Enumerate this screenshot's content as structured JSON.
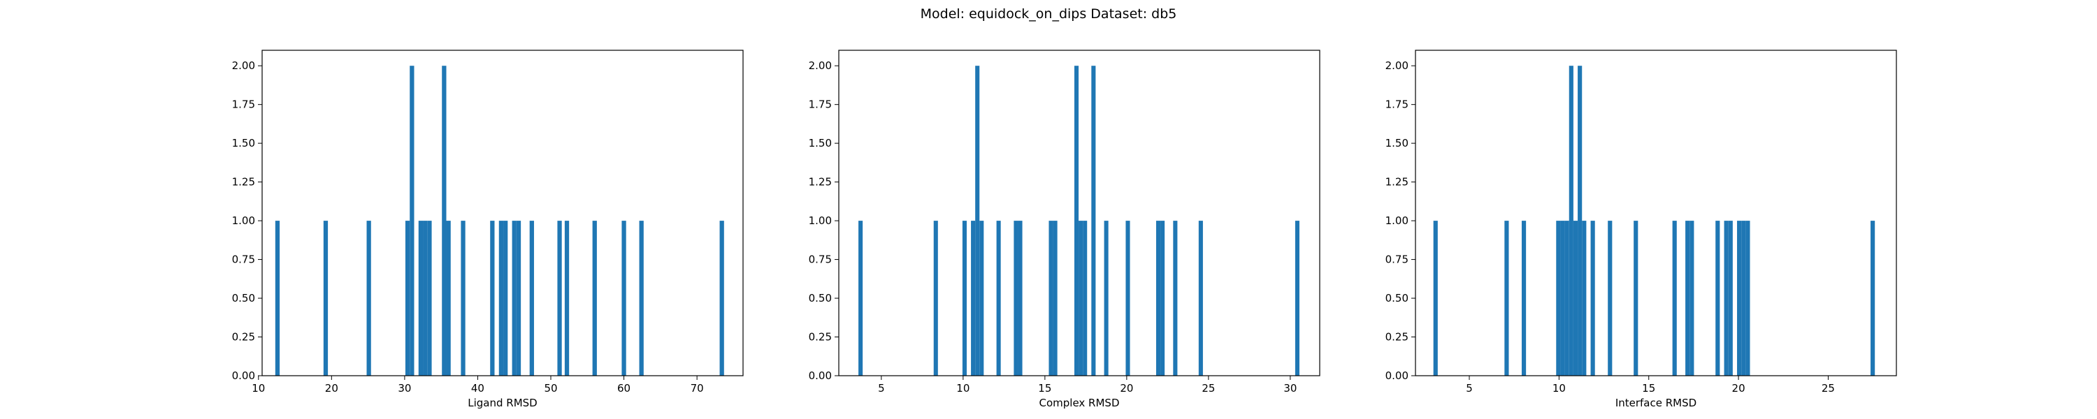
{
  "figure": {
    "suptitle": "Model: equidock_on_dips Dataset: db5"
  },
  "chart_data": [
    {
      "type": "bar",
      "subtype": "histogram",
      "xlabel": "Ligand RMSD",
      "ylabel": "",
      "bar_color": "#1f77b4",
      "xlim": [
        10.5,
        76.3
      ],
      "ylim": [
        0,
        2.1
      ],
      "xticks": [
        10,
        20,
        30,
        40,
        50,
        60,
        70
      ],
      "yticks": [
        "0.00",
        "0.25",
        "0.50",
        "0.75",
        "1.00",
        "1.25",
        "1.50",
        "1.75",
        "2.00"
      ],
      "bins": [
        [
          12.3,
          12.9,
          1
        ],
        [
          18.9,
          19.5,
          1
        ],
        [
          24.8,
          25.4,
          1
        ],
        [
          30.1,
          30.7,
          1
        ],
        [
          30.7,
          31.3,
          2
        ],
        [
          31.9,
          32.5,
          1
        ],
        [
          32.5,
          33.1,
          1
        ],
        [
          33.1,
          33.7,
          1
        ],
        [
          35.1,
          35.7,
          2
        ],
        [
          35.7,
          36.3,
          1
        ],
        [
          37.7,
          38.3,
          1
        ],
        [
          41.7,
          42.3,
          1
        ],
        [
          42.9,
          43.5,
          1
        ],
        [
          43.5,
          44.1,
          1
        ],
        [
          44.7,
          45.3,
          1
        ],
        [
          45.3,
          45.9,
          1
        ],
        [
          47.1,
          47.7,
          1
        ],
        [
          50.9,
          51.5,
          1
        ],
        [
          51.9,
          52.5,
          1
        ],
        [
          55.7,
          56.3,
          1
        ],
        [
          59.7,
          60.3,
          1
        ],
        [
          62.1,
          62.7,
          1
        ],
        [
          73.1,
          73.7,
          1
        ]
      ]
    },
    {
      "type": "bar",
      "subtype": "histogram",
      "xlabel": "Complex RMSD",
      "ylabel": "",
      "bar_color": "#1f77b4",
      "xlim": [
        2.4,
        31.8
      ],
      "ylim": [
        0,
        2.1
      ],
      "xticks": [
        5,
        10,
        15,
        20,
        25,
        30
      ],
      "yticks": [
        "0.00",
        "0.25",
        "0.50",
        "0.75",
        "1.00",
        "1.25",
        "1.50",
        "1.75",
        "2.00"
      ],
      "bins": [
        [
          3.6,
          3.86,
          1
        ],
        [
          8.2,
          8.46,
          1
        ],
        [
          9.96,
          10.22,
          1
        ],
        [
          10.48,
          10.74,
          1
        ],
        [
          10.74,
          11.0,
          2
        ],
        [
          11.0,
          11.26,
          1
        ],
        [
          12.04,
          12.3,
          1
        ],
        [
          13.1,
          13.36,
          1
        ],
        [
          13.36,
          13.62,
          1
        ],
        [
          15.24,
          15.5,
          1
        ],
        [
          15.5,
          15.76,
          1
        ],
        [
          16.8,
          17.06,
          2
        ],
        [
          17.06,
          17.32,
          1
        ],
        [
          17.32,
          17.58,
          1
        ],
        [
          17.84,
          18.1,
          2
        ],
        [
          18.62,
          18.88,
          1
        ],
        [
          19.94,
          20.2,
          1
        ],
        [
          21.8,
          22.06,
          1
        ],
        [
          22.06,
          22.32,
          1
        ],
        [
          22.84,
          23.1,
          1
        ],
        [
          24.4,
          24.66,
          1
        ],
        [
          30.3,
          30.56,
          1
        ]
      ]
    },
    {
      "type": "bar",
      "subtype": "histogram",
      "xlabel": "Interface RMSD",
      "ylabel": "",
      "bar_color": "#1f77b4",
      "xlim": [
        2.0,
        28.8
      ],
      "ylim": [
        0,
        2.1
      ],
      "xticks": [
        5,
        10,
        15,
        20,
        25
      ],
      "yticks": [
        "0.00",
        "0.25",
        "0.50",
        "0.75",
        "1.00",
        "1.25",
        "1.50",
        "1.75",
        "2.00"
      ],
      "bins": [
        [
          3.0,
          3.24,
          1
        ],
        [
          6.96,
          7.2,
          1
        ],
        [
          7.92,
          8.16,
          1
        ],
        [
          9.84,
          10.08,
          1
        ],
        [
          10.08,
          10.32,
          1
        ],
        [
          10.32,
          10.56,
          1
        ],
        [
          10.56,
          10.8,
          2
        ],
        [
          10.8,
          11.04,
          1
        ],
        [
          11.04,
          11.28,
          2
        ],
        [
          11.28,
          11.52,
          1
        ],
        [
          11.76,
          12.0,
          1
        ],
        [
          12.72,
          12.96,
          1
        ],
        [
          14.16,
          14.4,
          1
        ],
        [
          16.32,
          16.56,
          1
        ],
        [
          17.04,
          17.28,
          1
        ],
        [
          17.28,
          17.52,
          1
        ],
        [
          18.72,
          18.96,
          1
        ],
        [
          19.2,
          19.44,
          1
        ],
        [
          19.44,
          19.68,
          1
        ],
        [
          19.92,
          20.16,
          1
        ],
        [
          20.16,
          20.4,
          1
        ],
        [
          20.4,
          20.64,
          1
        ],
        [
          27.36,
          27.6,
          1
        ]
      ]
    }
  ]
}
